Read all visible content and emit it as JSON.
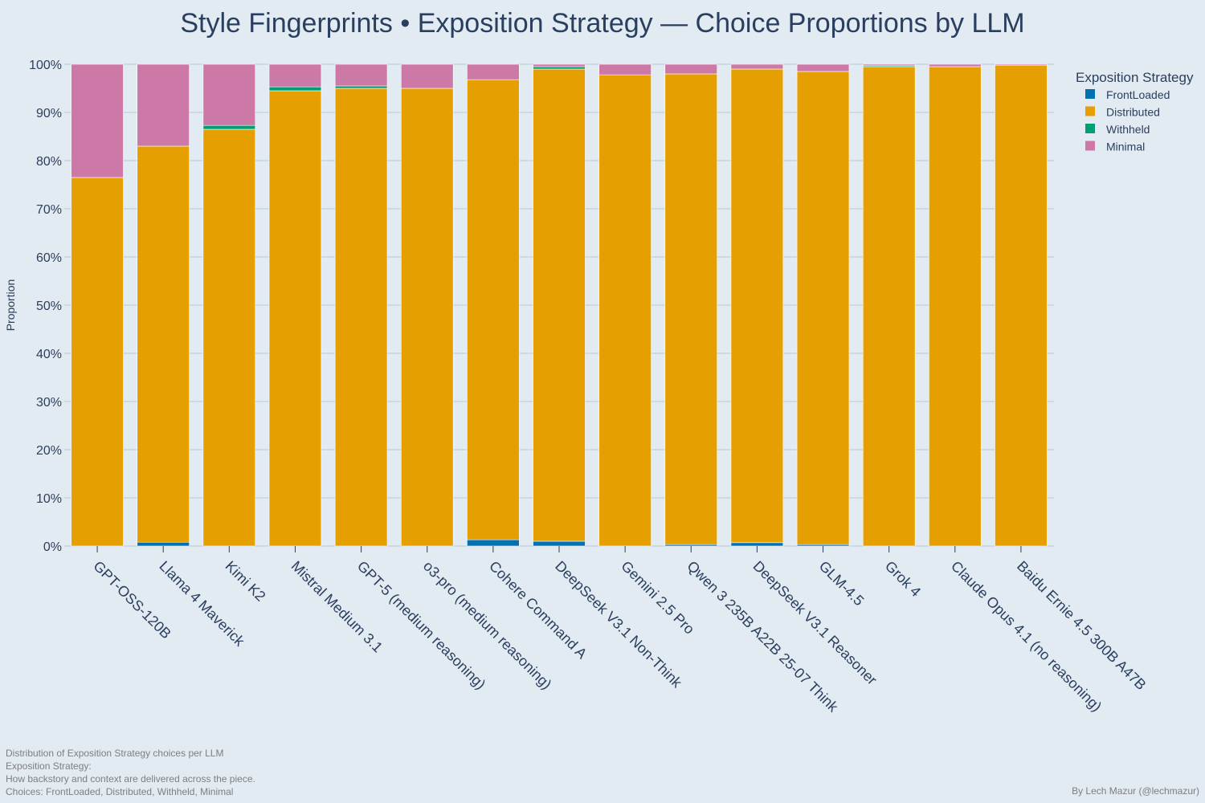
{
  "chart_data": {
    "type": "bar",
    "stacked": true,
    "title": "Style Fingerprints • Exposition Strategy — Choice Proportions by LLM",
    "xlabel": "",
    "ylabel": "Proportion",
    "ylim": [
      0,
      100
    ],
    "y_tick_labels": [
      "0%",
      "10%",
      "20%",
      "30%",
      "40%",
      "50%",
      "60%",
      "70%",
      "80%",
      "90%",
      "100%"
    ],
    "grid": true,
    "legend_position": "right",
    "legend_title": "Exposition Strategy",
    "categories": [
      "GPT-OSS-120B",
      "Llama 4 Maverick",
      "Kimi K2",
      "Mistral Medium 3.1",
      "GPT-5 (medium reasoning)",
      "o3-pro (medium reasoning)",
      "Cohere Command A",
      "DeepSeek V3.1 Non-Think",
      "Gemini 2.5 Pro",
      "Qwen 3 235B A22B 25-07 Think",
      "DeepSeek V3.1 Reasoner",
      "GLM-4.5",
      "Grok 4",
      "Claude Opus 4.1 (no reasoning)",
      "Baidu Ernie 4.5 300B A47B"
    ],
    "series": [
      {
        "name": "FrontLoaded",
        "color": "#0072b2",
        "values": [
          0,
          0.8,
          0,
          0,
          0,
          0,
          1.3,
          1.0,
          0,
          0.3,
          0.7,
          0.3,
          0,
          0,
          0
        ]
      },
      {
        "name": "Distributed",
        "color": "#e69f00",
        "values": [
          76.5,
          82.2,
          86.5,
          94.5,
          95.0,
          95.0,
          95.5,
          98.0,
          97.8,
          97.7,
          98.3,
          98.2,
          99.5,
          99.5,
          99.8
        ]
      },
      {
        "name": "Withheld",
        "color": "#009e73",
        "values": [
          0,
          0,
          0.8,
          0.8,
          0.5,
          0,
          0,
          0.5,
          0,
          0,
          0,
          0,
          0.2,
          0,
          0
        ]
      },
      {
        "name": "Minimal",
        "color": "#cc79a7",
        "values": [
          23.5,
          17.0,
          12.7,
          4.7,
          4.5,
          5.0,
          3.2,
          0.5,
          2.2,
          2.0,
          1.0,
          1.5,
          0.3,
          0.5,
          0.2
        ]
      }
    ]
  },
  "footnote": {
    "line1": "Distribution of Exposition Strategy choices per LLM",
    "line2": "Exposition Strategy:",
    "line3": "How backstory and context are delivered across the piece.",
    "line4": "Choices: FrontLoaded, Distributed, Withheld, Minimal"
  },
  "credit": "By Lech Mazur (@lechmazur)"
}
